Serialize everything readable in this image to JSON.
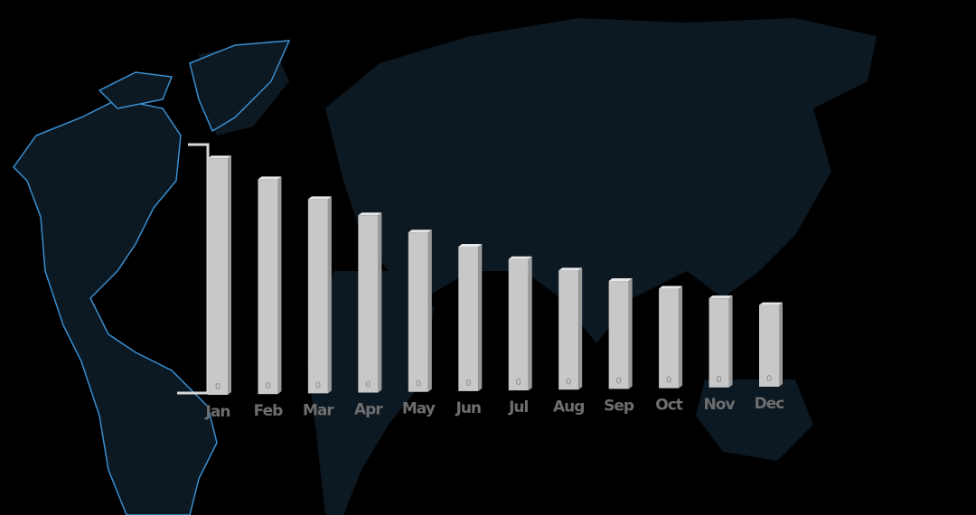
{
  "chart_data": {
    "type": "bar3d",
    "categories": [
      "Jan",
      "Feb",
      "Mar",
      "Apr",
      "May",
      "Jun",
      "Jul",
      "Aug",
      "Sep",
      "Oct",
      "Nov",
      "Dec"
    ],
    "values": [
      252,
      229,
      207,
      189,
      170,
      154,
      140,
      127,
      115,
      106,
      95,
      87
    ],
    "bar_base_labels": [
      "0",
      "0",
      "0",
      "0",
      "0",
      "0",
      "0",
      "0",
      "0",
      "0",
      "0",
      "0"
    ],
    "ylim": [
      0,
      260
    ],
    "color": "#c8c8c8"
  }
}
